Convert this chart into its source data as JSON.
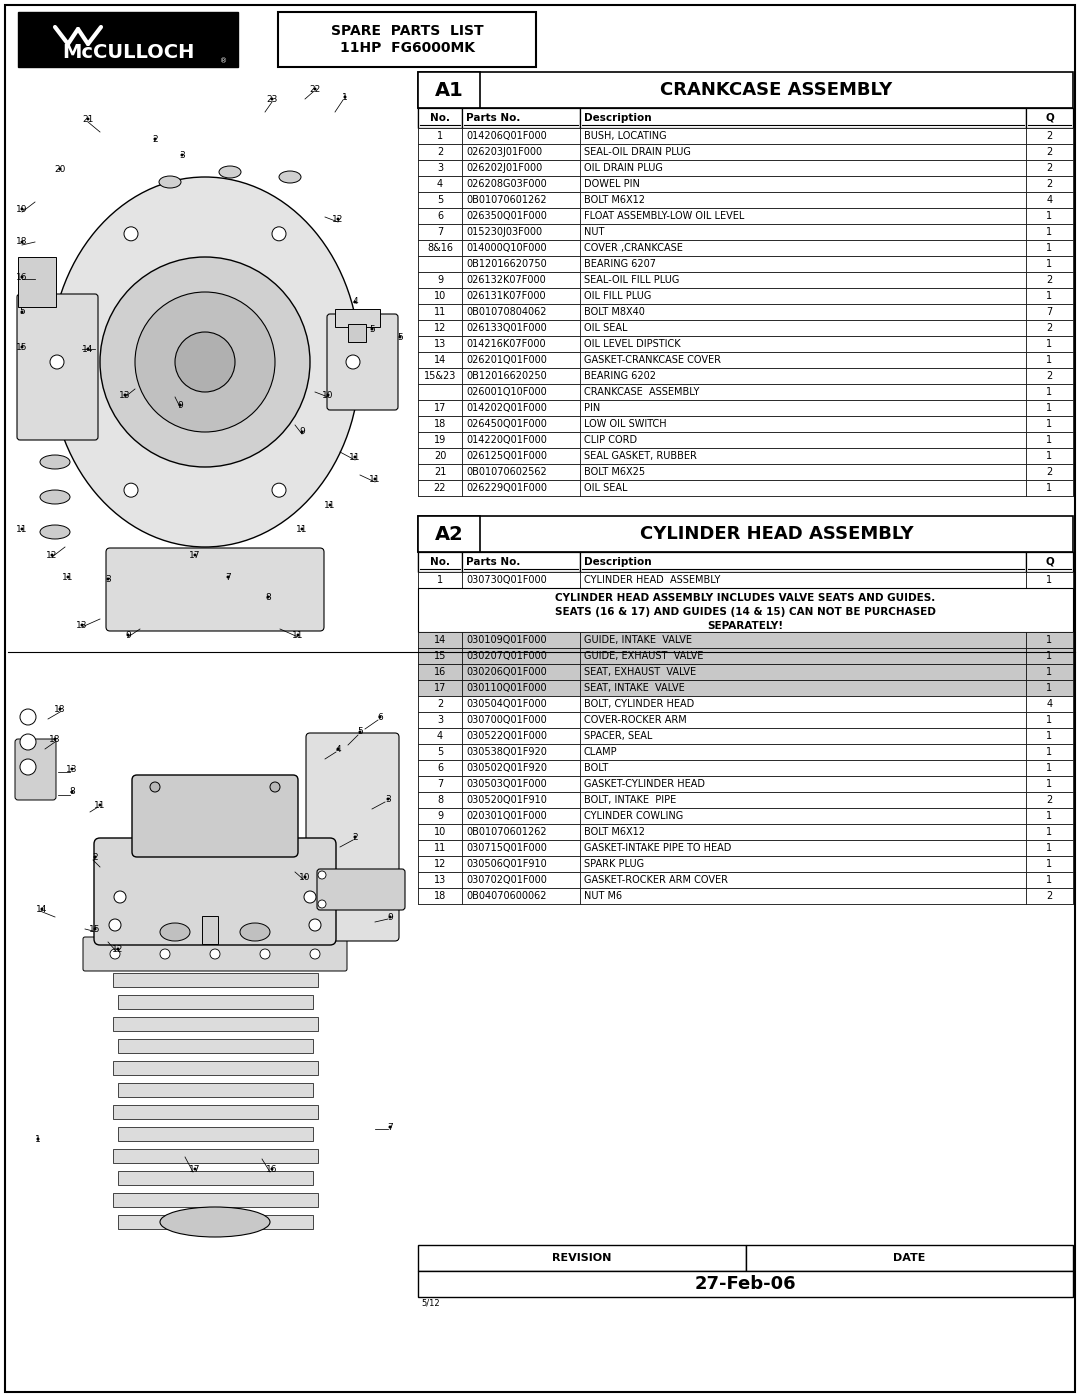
{
  "title_line1": "SPARE  PARTS  LIST",
  "title_line2": "11HP  FG6000MK",
  "section_a1_label": "A1",
  "section_a1_title": "CRANKCASE ASSEMBLY",
  "section_a2_label": "A2",
  "section_a2_title": "CYLINDER HEAD ASSEMBLY",
  "col_headers": [
    "No.",
    "Parts No.",
    "Description",
    "Q"
  ],
  "a1_rows": [
    [
      "1",
      "014206Q01F000",
      "BUSH, LOCATING",
      "2"
    ],
    [
      "2",
      "026203J01F000",
      "SEAL-OIL DRAIN PLUG",
      "2"
    ],
    [
      "3",
      "026202J01F000",
      "OIL DRAIN PLUG",
      "2"
    ],
    [
      "4",
      "026208G03F000",
      "DOWEL PIN",
      "2"
    ],
    [
      "5",
      "0B01070601262",
      "BOLT M6X12",
      "4"
    ],
    [
      "6",
      "026350Q01F000",
      "FLOAT ASSEMBLY-LOW OIL LEVEL",
      "1"
    ],
    [
      "7",
      "015230J03F000",
      "NUT",
      "1"
    ],
    [
      "8&16",
      "014000Q10F000",
      "COVER ,CRANKCASE",
      "1"
    ],
    [
      "",
      "0B12016620750",
      "BEARING 6207",
      "1"
    ],
    [
      "9",
      "026132K07F000",
      "SEAL-OIL FILL PLUG",
      "2"
    ],
    [
      "10",
      "026131K07F000",
      "OIL FILL PLUG",
      "1"
    ],
    [
      "11",
      "0B01070804062",
      "BOLT M8X40",
      "7"
    ],
    [
      "12",
      "026133Q01F000",
      "OIL SEAL",
      "2"
    ],
    [
      "13",
      "014216K07F000",
      "OIL LEVEL DIPSTICK",
      "1"
    ],
    [
      "14",
      "026201Q01F000",
      "GASKET-CRANKCASE COVER",
      "1"
    ],
    [
      "15&23",
      "0B12016620250",
      "BEARING 6202",
      "2"
    ],
    [
      "",
      "026001Q10F000",
      "CRANKCASE  ASSEMBLY",
      "1"
    ],
    [
      "17",
      "014202Q01F000",
      "PIN",
      "1"
    ],
    [
      "18",
      "026450Q01F000",
      "LOW OIL SWITCH",
      "1"
    ],
    [
      "19",
      "014220Q01F000",
      "CLIP CORD",
      "1"
    ],
    [
      "20",
      "026125Q01F000",
      "SEAL GASKET, RUBBER",
      "1"
    ],
    [
      "21",
      "0B01070602562",
      "BOLT M6X25",
      "2"
    ],
    [
      "22",
      "026229Q01F000",
      "OIL SEAL",
      "1"
    ]
  ],
  "a2_notice_lines": [
    "CYLINDER HEAD ASSEMBLY INCLUDES VALVE SEATS AND GUIDES.",
    "SEATS (16 & 17) AND GUIDES (14 & 15) CAN NOT BE PURCHASED",
    "SEPARATELY!"
  ],
  "a2_rows": [
    [
      "1",
      "030730Q01F000",
      "CYLINDER HEAD  ASSEMBLY",
      "1",
      false
    ],
    [
      "14",
      "030109Q01F000",
      "GUIDE, INTAKE  VALVE",
      "1",
      true
    ],
    [
      "15",
      "030207Q01F000",
      "GUIDE, EXHAUST  VALVE",
      "1",
      true
    ],
    [
      "16",
      "030206Q01F000",
      "SEAT, EXHAUST  VALVE",
      "1",
      true
    ],
    [
      "17",
      "030110Q01F000",
      "SEAT, INTAKE  VALVE",
      "1",
      true
    ],
    [
      "2",
      "030504Q01F000",
      "BOLT, CYLINDER HEAD",
      "4",
      false
    ],
    [
      "3",
      "030700Q01F000",
      "COVER-ROCKER ARM",
      "1",
      false
    ],
    [
      "4",
      "030522Q01F000",
      "SPACER, SEAL",
      "1",
      false
    ],
    [
      "5",
      "030538Q01F920",
      "CLAMP",
      "1",
      false
    ],
    [
      "6",
      "030502Q01F920",
      "BOLT",
      "1",
      false
    ],
    [
      "7",
      "030503Q01F000",
      "GASKET-CYLINDER HEAD",
      "1",
      false
    ],
    [
      "8",
      "030520Q01F910",
      "BOLT, INTAKE  PIPE",
      "2",
      false
    ],
    [
      "9",
      "020301Q01F000",
      "CYLINDER COWLING",
      "1",
      false
    ],
    [
      "10",
      "0B01070601262",
      "BOLT M6X12",
      "1",
      false
    ],
    [
      "11",
      "030715Q01F000",
      "GASKET-INTAKE PIPE TO HEAD",
      "1",
      false
    ],
    [
      "12",
      "030506Q01F910",
      "SPARK PLUG",
      "1",
      false
    ],
    [
      "13",
      "030702Q01F000",
      "GASKET-ROCKER ARM COVER",
      "1",
      false
    ],
    [
      "18",
      "0B04070600062",
      "NUT M6",
      "2",
      false
    ]
  ],
  "revision_label": "REVISION",
  "date_label": "DATE",
  "date_value": "27-Feb-06",
  "page_num": "5/12"
}
